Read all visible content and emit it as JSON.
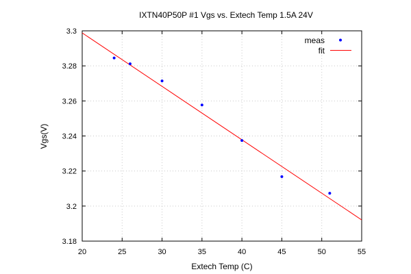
{
  "chart_data": {
    "type": "scatter",
    "title": "IXTN40P50P #1 Vgs vs. Extech Temp 1.5A 24V",
    "xlabel": "Extech Temp (C)",
    "ylabel": "Vgs(V)",
    "xlim": [
      20,
      55
    ],
    "ylim": [
      3.18,
      3.3
    ],
    "xticks": [
      "20",
      "25",
      "30",
      "35",
      "40",
      "45",
      "50",
      "55"
    ],
    "yticks": [
      "3.18",
      "3.2",
      "3.22",
      "3.24",
      "3.26",
      "3.28",
      "3.3"
    ],
    "grid": true,
    "legend_position": "top-right",
    "series": [
      {
        "name": "meas",
        "kind": "points",
        "color": "#0000ff",
        "x": [
          24,
          26,
          30,
          35,
          40,
          45,
          51
        ],
        "y": [
          3.2845,
          3.2812,
          3.2714,
          3.2577,
          3.2374,
          3.2168,
          3.2073
        ]
      },
      {
        "name": "fit",
        "kind": "line",
        "color": "#ff0000",
        "x": [
          20,
          55
        ],
        "y": [
          3.2988,
          3.1921
        ]
      }
    ]
  }
}
